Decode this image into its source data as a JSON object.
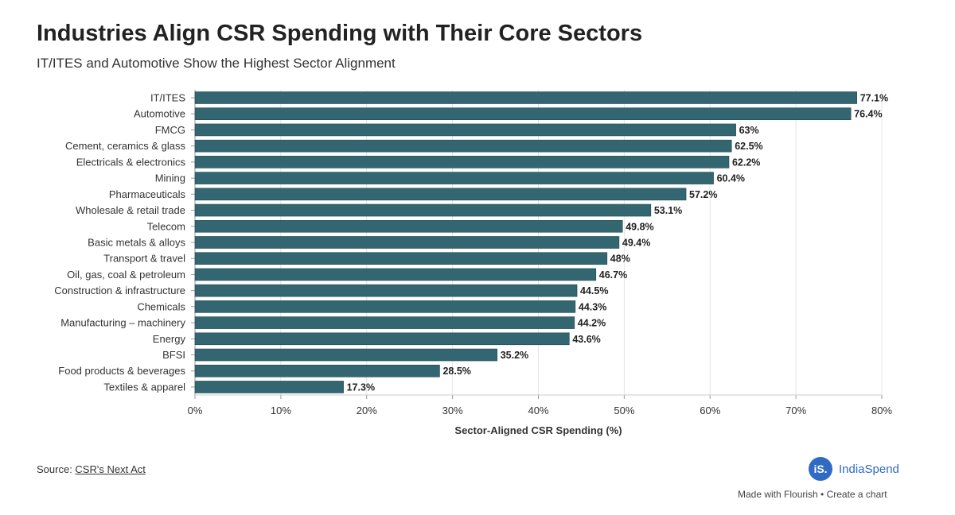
{
  "chart_data": {
    "type": "bar",
    "orientation": "horizontal",
    "title": "Industries Align CSR Spending with Their Core Sectors",
    "subtitle": "IT/ITES and Automotive Show the Highest Sector Alignment",
    "xlabel": "Sector-Aligned CSR Spending (%)",
    "ylabel": "",
    "xlim": [
      0,
      80
    ],
    "xticks": [
      "0%",
      "10%",
      "20%",
      "30%",
      "40%",
      "50%",
      "60%",
      "70%",
      "80%"
    ],
    "grid": true,
    "bar_color": "#336670",
    "categories": [
      "IT/ITES",
      "Automotive",
      "FMCG",
      "Cement, ceramics & glass",
      "Electricals & electronics",
      "Mining",
      "Pharmaceuticals",
      "Wholesale & retail trade",
      "Telecom",
      "Basic metals & alloys",
      "Transport & travel",
      "Oil, gas, coal & petroleum",
      "Construction & infrastructure",
      "Chemicals",
      "Manufacturing – machinery",
      "Energy",
      "BFSI",
      "Food products & beverages",
      "Textiles & apparel"
    ],
    "values": [
      77.1,
      76.4,
      63,
      62.5,
      62.2,
      60.4,
      57.2,
      53.1,
      49.8,
      49.4,
      48,
      46.7,
      44.5,
      44.3,
      44.2,
      43.6,
      35.2,
      28.5,
      17.3
    ],
    "data_labels": [
      "77.1%",
      "76.4%",
      "63%",
      "62.5%",
      "62.2%",
      "60.4%",
      "57.2%",
      "53.1%",
      "49.8%",
      "49.4%",
      "48%",
      "46.7%",
      "44.5%",
      "44.3%",
      "44.2%",
      "43.6%",
      "35.2%",
      "28.5%",
      "17.3%"
    ]
  },
  "footer": {
    "source_prefix": "Source: ",
    "source_link": "CSR's Next Act",
    "logo_mark": "iS.",
    "logo_text": "IndiaSpend",
    "made_with": "Made with Flourish • Create a chart"
  }
}
